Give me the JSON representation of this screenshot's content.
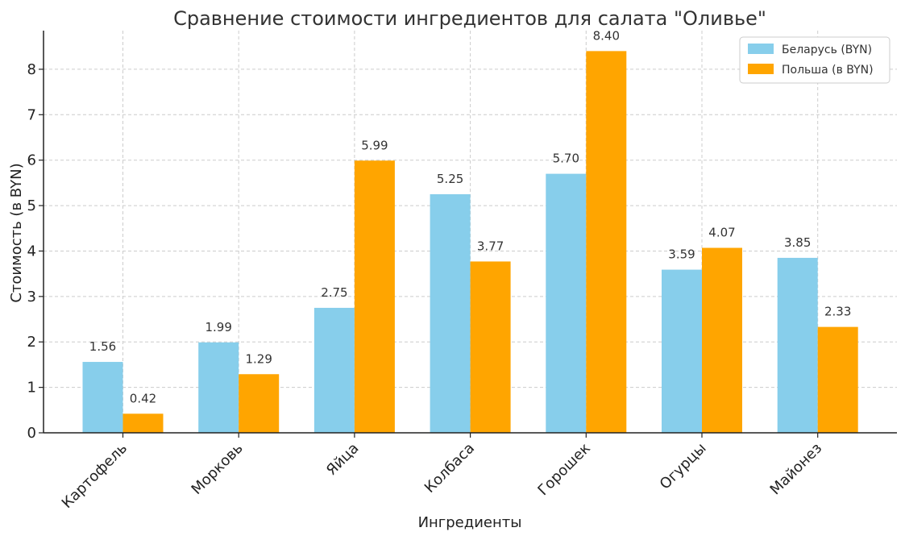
{
  "chart_data": {
    "type": "bar",
    "title": "Сравнение стоимости ингредиентов для салата \"Оливье\"",
    "xlabel": "Ингредиенты",
    "ylabel": "Стоимость (в BYN)",
    "categories": [
      "Картофель",
      "Морковь",
      "Яйца",
      "Колбаса",
      "Горошек",
      "Огурцы",
      "Майонез"
    ],
    "series": [
      {
        "name": "Беларусь (BYN)",
        "values": [
          1.56,
          1.99,
          2.75,
          5.25,
          5.7,
          3.59,
          3.85
        ],
        "color": "#87CEEB"
      },
      {
        "name": "Польша (в BYN)",
        "values": [
          0.42,
          1.29,
          5.99,
          3.77,
          8.4,
          4.07,
          2.33
        ],
        "color": "#FFA500"
      }
    ],
    "ylim": [
      0,
      8.85
    ],
    "yticks": [
      0,
      1,
      2,
      3,
      4,
      5,
      6,
      7,
      8
    ],
    "grid": true,
    "legend_position": "top-right",
    "data_labels": true
  }
}
